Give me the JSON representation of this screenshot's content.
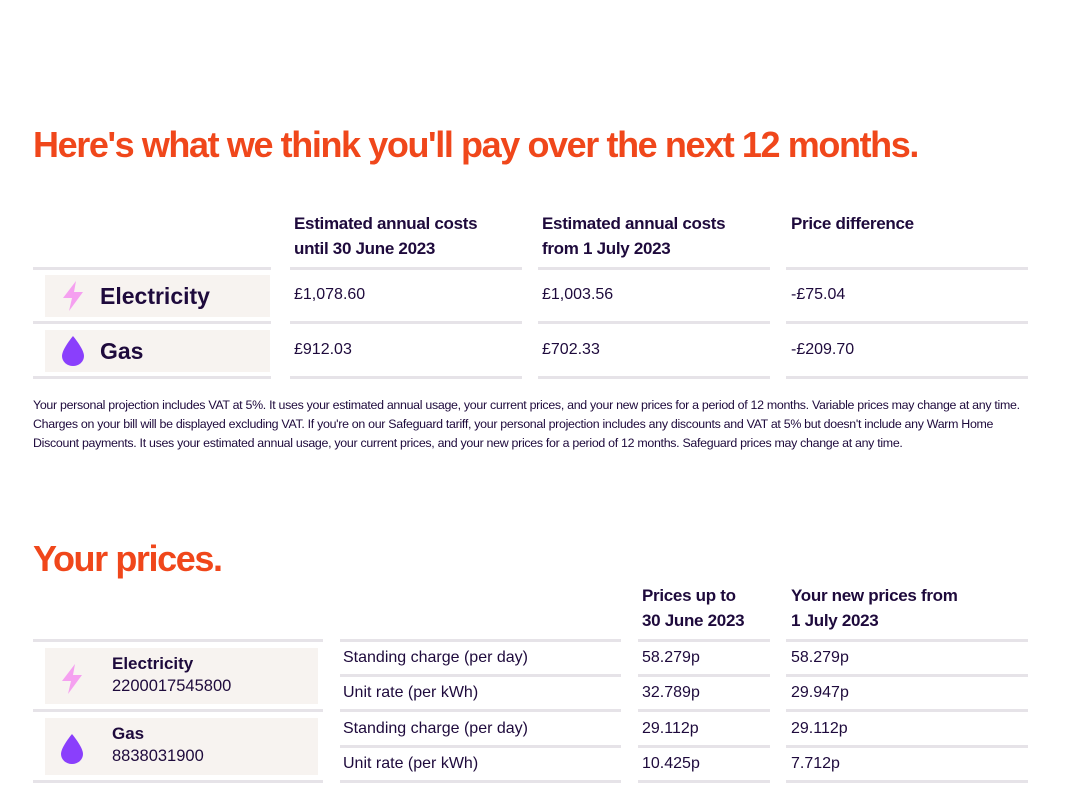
{
  "projection": {
    "heading": "Here's what we think you'll pay over the next 12 months.",
    "columns": {
      "col1_line1": "Estimated annual costs",
      "col1_line2": "until 30 June 2023",
      "col2_line1": "Estimated annual costs",
      "col2_line2": "from 1 July 2023",
      "col3": "Price difference"
    },
    "rows": [
      {
        "fuel": "Electricity",
        "icon": "lightning-bolt-icon",
        "until": "£1,078.60",
        "from": "£1,003.56",
        "diff": "-£75.04"
      },
      {
        "fuel": "Gas",
        "icon": "gas-flame-drop-icon",
        "until": "£912.03",
        "from": "£702.33",
        "diff": "-£209.70"
      }
    ],
    "note": "Your personal projection includes VAT at 5%. It uses your estimated annual usage, your current prices, and your new prices for a period of 12 months. Variable prices may change at any time. Charges on your bill will be displayed excluding VAT. If you're on our Safeguard tariff, your personal projection includes any discounts and VAT at 5% but doesn't include any Warm Home Discount payments. It uses your estimated annual usage, your current prices, and your new prices for a period of 12 months. Safeguard prices may change at any time."
  },
  "prices": {
    "heading": "Your prices.",
    "columns": {
      "col1_line1": "Prices up to",
      "col1_line2": "30 June 2023",
      "col2_line1": "Your new prices from",
      "col2_line2": "1 July 2023"
    },
    "meters": [
      {
        "fuel": "Electricity",
        "number": "2200017545800",
        "icon": "lightning-bolt-icon",
        "rates": [
          {
            "label": "Standing charge (per day)",
            "old": "58.279p",
            "new": "58.279p"
          },
          {
            "label": "Unit rate (per kWh)",
            "old": "32.789p",
            "new": "29.947p"
          }
        ]
      },
      {
        "fuel": "Gas",
        "number": "8838031900",
        "icon": "gas-flame-drop-icon",
        "rates": [
          {
            "label": "Standing charge (per day)",
            "old": "29.112p",
            "new": "29.112p"
          },
          {
            "label": "Unit rate (per kWh)",
            "old": "10.425p",
            "new": "7.712p"
          }
        ]
      }
    ]
  },
  "colors": {
    "heading": "#f0471b",
    "text": "#1e0a3c",
    "chip_background": "#f7f3f0",
    "electricity_icon": "#f5a0f0",
    "gas_icon": "#8a3ffc",
    "rule": "#e6e3e8"
  }
}
